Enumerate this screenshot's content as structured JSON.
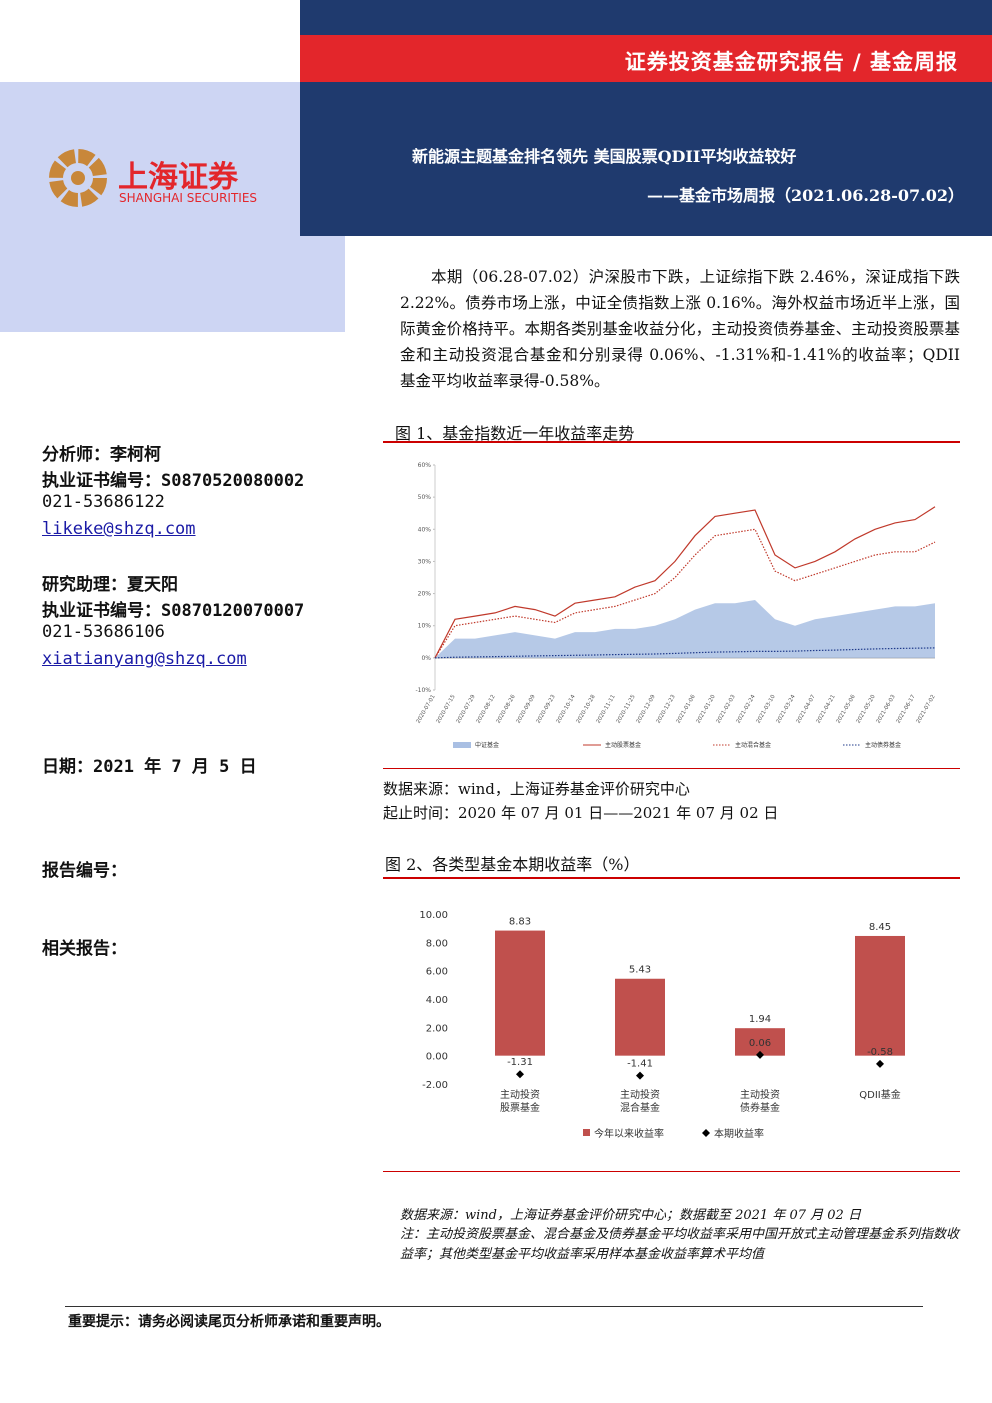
{
  "header": {
    "report_type": "证券投资基金研究报告 / 基金周报",
    "title": "新能源主题基金排名领先 美国股票QDII平均收益较好",
    "subtitle": "——基金市场周报（2021.06.28-07.02）",
    "logo_cn": "上海证券",
    "logo_en": "SHANGHAI SECURITIES"
  },
  "sidebar": {
    "analysts": [
      {
        "role": "分析师：李柯柯",
        "cert": "执业证书编号：S0870520080002",
        "phone": "021-53686122",
        "email": "likeke@shzq.com"
      },
      {
        "role": "研究助理：夏天阳",
        "cert": "执业证书编号：S0870120070007",
        "phone": "021-53686106",
        "email": "xiatianyang@shzq.com"
      }
    ],
    "date": "日期：2021 年 7 月 5 日",
    "report_no": "报告编号：",
    "related": "相关报告："
  },
  "body": {
    "paragraph": "本期（06.28-07.02）沪深股市下跌，上证综指下跌 2.46%，深证成指下跌 2.22%。债券市场上涨，中证全债指数上涨 0.16%。海外权益市场近半上涨，国际黄金价格持平。本期各类别基金收益分化，主动投资债券基金、主动投资股票基金和主动投资混合基金和分别录得 0.06%、-1.31%和-1.41%的收益率；QDII 基金平均收益率录得-0.58%。"
  },
  "chart_data": [
    {
      "type": "line",
      "title": "图 1、基金指数近一年收益率走势",
      "categories": [
        "2020-07-01",
        "2020-07-15",
        "2020-07-29",
        "2020-08-12",
        "2020-08-26",
        "2020-09-09",
        "2020-09-23",
        "2020-10-14",
        "2020-10-28",
        "2020-11-11",
        "2020-11-25",
        "2020-12-09",
        "2020-12-23",
        "2021-01-06",
        "2021-01-20",
        "2021-02-03",
        "2021-02-24",
        "2021-03-10",
        "2021-03-24",
        "2021-04-07",
        "2021-04-21",
        "2021-05-06",
        "2021-05-20",
        "2021-06-03",
        "2021-06-17",
        "2021-07-02"
      ],
      "series": [
        {
          "name": "中证基金",
          "color": "#a9bfe3",
          "style": "area",
          "values": [
            0,
            6,
            6,
            7,
            8,
            7,
            6,
            8,
            8,
            9,
            9,
            10,
            12,
            15,
            17,
            17,
            18,
            12,
            10,
            12,
            13,
            14,
            15,
            16,
            16,
            17
          ]
        },
        {
          "name": "主动股票基金",
          "color": "#c0392b",
          "style": "solid",
          "values": [
            0,
            12,
            13,
            14,
            16,
            15,
            13,
            17,
            18,
            19,
            22,
            24,
            30,
            38,
            44,
            45,
            46,
            32,
            28,
            30,
            33,
            37,
            40,
            42,
            43,
            47
          ]
        },
        {
          "name": "主动混合基金",
          "color": "#c0392b",
          "style": "dotted",
          "values": [
            0,
            10,
            11,
            12,
            13,
            12,
            11,
            14,
            15,
            16,
            18,
            20,
            25,
            32,
            38,
            39,
            40,
            27,
            24,
            26,
            28,
            30,
            32,
            33,
            33,
            36
          ]
        },
        {
          "name": "主动债券基金",
          "color": "#1f3a8a",
          "style": "dotted",
          "values": [
            0,
            0.2,
            0.3,
            0.4,
            0.5,
            0.6,
            0.7,
            0.8,
            0.9,
            1.0,
            1.1,
            1.2,
            1.4,
            1.6,
            1.8,
            1.9,
            2.0,
            2.0,
            2.1,
            2.3,
            2.4,
            2.6,
            2.8,
            2.9,
            3.0,
            3.1
          ]
        }
      ],
      "ylim": [
        -10,
        60
      ],
      "yticks": [
        {
          "value": -10,
          "label": "-10%"
        },
        {
          "value": 0,
          "label": "0%"
        },
        {
          "value": 10,
          "label": "10%"
        },
        {
          "value": 20,
          "label": "20%"
        },
        {
          "value": 30,
          "label": "30%"
        },
        {
          "value": 40,
          "label": "40%"
        },
        {
          "value": 50,
          "label": "50%"
        },
        {
          "value": 60,
          "label": "60%"
        }
      ],
      "notes": [
        "数据来源：wind，上海证券基金评价研究中心",
        "起止时间：2020 年 07 月 01 日——2021 年 07 月 02 日"
      ]
    },
    {
      "type": "bar",
      "title": "图 2、各类型基金本期收益率（%）",
      "categories": [
        [
          "主动投资",
          "股票基金"
        ],
        [
          "主动投资",
          "混合基金"
        ],
        [
          "主动投资",
          "债券基金"
        ],
        [
          "QDII基金"
        ]
      ],
      "series": [
        {
          "name": "今年以来收益率",
          "color": "#c0504d",
          "type": "bar",
          "values": [
            8.83,
            5.43,
            1.94,
            8.45
          ]
        },
        {
          "name": "本期收益率",
          "color": "#000000",
          "type": "scatter",
          "values": [
            -1.31,
            -1.41,
            0.06,
            -0.58
          ]
        }
      ],
      "ylim": [
        -2,
        10
      ],
      "yticks": [
        {
          "value": -2,
          "label": "-2.00"
        },
        {
          "value": 0,
          "label": "0.00"
        },
        {
          "value": 2,
          "label": "2.00"
        },
        {
          "value": 4,
          "label": "4.00"
        },
        {
          "value": 6,
          "label": "6.00"
        },
        {
          "value": 8,
          "label": "8.00"
        },
        {
          "value": 10,
          "label": "10.00"
        }
      ],
      "notes": [
        "数据来源：wind，上海证券基金评价研究中心；数据截至 2021 年 07 月 02 日",
        "注：主动投资股票基金、混合基金及债券基金平均收益率采用中国开放式主动管理基金系列指数收益率；其他类型基金平均收益率采用样本基金收益率算术平均值"
      ]
    }
  ],
  "footer": {
    "notice": "重要提示：请务必阅读尾页分析师承诺和重要声明。"
  }
}
